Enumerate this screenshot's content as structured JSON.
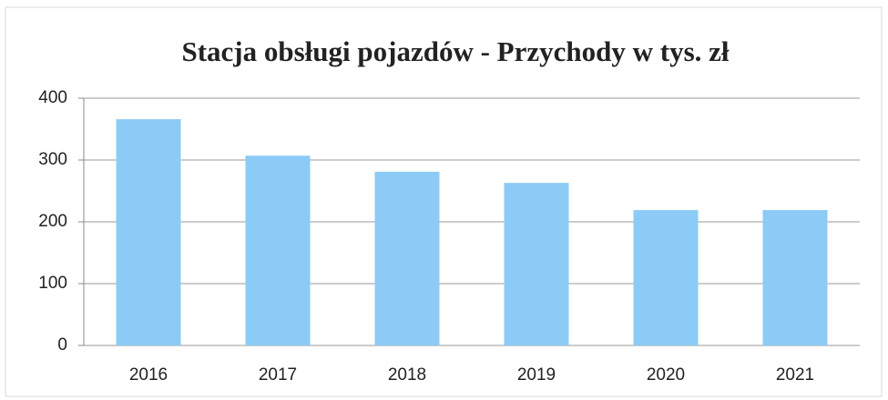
{
  "chart_data": {
    "type": "bar",
    "title": "Stacja obsługi pojazdów - Przychody w tys. zł",
    "categories": [
      "2016",
      "2017",
      "2018",
      "2019",
      "2020",
      "2021"
    ],
    "values": [
      366,
      307,
      281,
      263,
      219,
      219
    ],
    "color": "#8ccbf5",
    "ylim": [
      0,
      400
    ],
    "yticks": [
      0,
      100,
      200,
      300,
      400
    ],
    "grid": true
  }
}
